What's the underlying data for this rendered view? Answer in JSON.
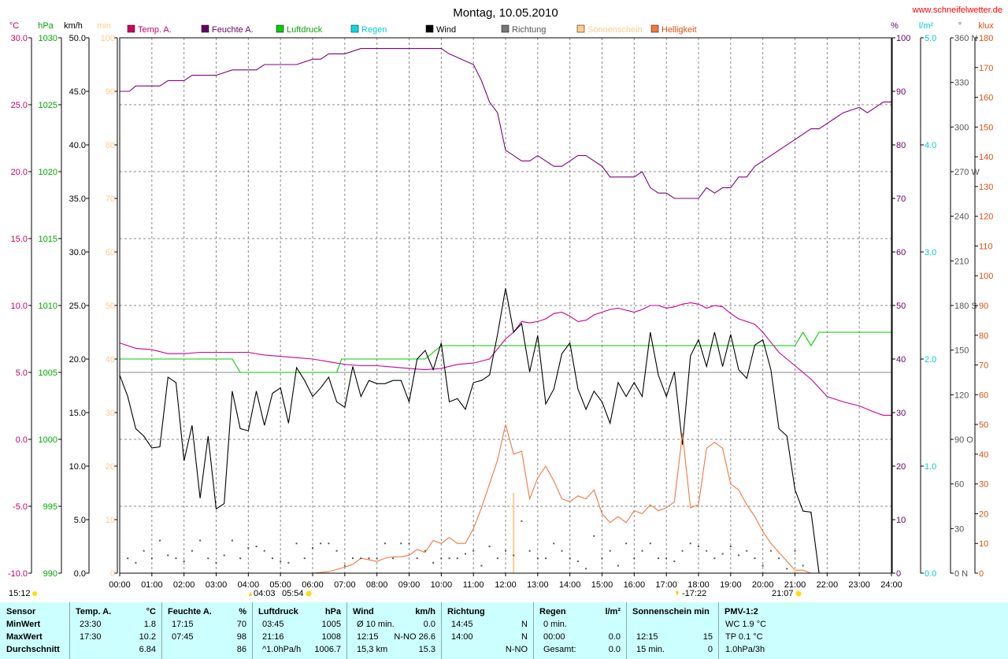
{
  "title": "Montag, 10.05.2010",
  "website": "www.schneifelwetter.de",
  "left_axes": {
    "temp": {
      "unit": "°C",
      "ticks": [
        "30.0",
        "25.0",
        "20.0",
        "15.0",
        "10.0",
        "5.0",
        "0.0",
        "-5.0",
        "-10.0"
      ],
      "color": "#cc0066"
    },
    "pressure": {
      "unit": "hPa",
      "ticks": [
        "1030",
        "1025",
        "1020",
        "1015",
        "1010",
        "1005",
        "1000",
        "995",
        "990"
      ],
      "color": "#00aa00"
    },
    "wind": {
      "unit": "km/h",
      "ticks": [
        "50.0",
        "45.0",
        "40.0",
        "35.0",
        "30.0",
        "25.0",
        "20.0",
        "15.0",
        "10.0",
        "5.0",
        "0.0"
      ],
      "color": "#000000"
    },
    "sun": {
      "unit": "min",
      "ticks": [
        "100",
        "90",
        "80",
        "70",
        "60",
        "50",
        "40",
        "30",
        "20",
        "10",
        "0"
      ],
      "color": "#ffcc88"
    }
  },
  "right_axes": {
    "humidity": {
      "unit": "%",
      "ticks": [
        "100",
        "90",
        "80",
        "70",
        "60",
        "50",
        "40",
        "30",
        "20",
        "10",
        "0"
      ],
      "color": "#660066"
    },
    "rain": {
      "unit": "l/m²",
      "ticks": [
        "5.0",
        "4.0",
        "3.0",
        "2.0",
        "1.0",
        "0.0"
      ],
      "color": "#00cccc"
    },
    "direction": {
      "unit": "°",
      "ticks": [
        "360 N",
        "330",
        "300",
        "270 W",
        "240",
        "210",
        "180 S",
        "150",
        "120",
        "90 O",
        "60",
        "30",
        "0 N"
      ],
      "color": "#555555"
    },
    "light": {
      "unit": "klux",
      "ticks": [
        "180",
        "170",
        "160",
        "150",
        "140",
        "130",
        "120",
        "110",
        "100",
        "90",
        "80",
        "70",
        "60",
        "50",
        "40",
        "30",
        "20",
        "10",
        "0"
      ],
      "color": "#e05010"
    }
  },
  "legend": [
    {
      "label": "Temp. A.",
      "color": "#cc0066"
    },
    {
      "label": "Feuchte A.",
      "color": "#660066"
    },
    {
      "label": "Luftdruck",
      "color": "#00cc00"
    },
    {
      "label": "Regen",
      "color": "#00dddd"
    },
    {
      "label": "Wind",
      "color": "#000000"
    },
    {
      "label": "Richtung",
      "color": "#777777"
    },
    {
      "label": "Sonnenschein",
      "color": "#ffcc88"
    },
    {
      "label": "Helligkeit",
      "color": "#f07840"
    }
  ],
  "x_ticks": [
    "00:00",
    "01:00",
    "02:00",
    "03:00",
    "04:00",
    "05:00",
    "06:00",
    "07:00",
    "08:00",
    "09:00",
    "10:00",
    "11:00",
    "12:00",
    "13:00",
    "14:00",
    "15:00",
    "16:00",
    "17:00",
    "18:00",
    "19:00",
    "20:00",
    "21:00",
    "22:00",
    "23:00",
    "24:00"
  ],
  "markers": {
    "left_time": "15:12",
    "moon_rise": "04:03",
    "sun_rise": "05:54",
    "moon_set": "-17:22",
    "sun_set": "21:07"
  },
  "chart_data": {
    "type": "line",
    "title": "Montag, 10.05.2010",
    "x_range": [
      "00:00",
      "24:00"
    ],
    "grid": true,
    "series": [
      {
        "name": "Feuchte A.",
        "unit": "%",
        "axis": "humidity",
        "x": [
          0.0,
          0.3,
          0.5,
          1.25,
          1.5,
          2.0,
          2.25,
          3.0,
          3.5,
          4.25,
          4.5,
          5.5,
          6.0,
          6.25,
          6.5,
          7.0,
          7.5,
          10.0,
          10.25,
          11.0,
          11.25,
          11.5,
          11.75,
          12.0,
          12.25,
          12.5,
          12.75,
          13.0,
          13.25,
          13.5,
          13.75,
          14.0,
          14.25,
          14.5,
          14.75,
          15.0,
          15.25,
          15.5,
          16.0,
          16.25,
          16.5,
          16.75,
          17.0,
          17.25,
          17.5,
          17.75,
          18.0,
          18.25,
          18.5,
          18.75,
          19.0,
          19.25,
          19.5,
          19.75,
          20.0,
          20.5,
          21.0,
          21.5,
          21.75,
          22.0,
          22.25,
          22.5,
          23.0,
          23.25,
          23.5,
          23.75,
          24.0
        ],
        "values": [
          90,
          90,
          91,
          91,
          92,
          92,
          93,
          93,
          94,
          94,
          95,
          95,
          96,
          96,
          97,
          97,
          98,
          98,
          97,
          95,
          92,
          88,
          86,
          79,
          78,
          77,
          77,
          78,
          77,
          76,
          76,
          77,
          78,
          78,
          77,
          76,
          74,
          74,
          74,
          75,
          72,
          71,
          71,
          70,
          70,
          70,
          70,
          72,
          71,
          72,
          72,
          74,
          74,
          76,
          77,
          79,
          81,
          83,
          83,
          84,
          85,
          86,
          87,
          86,
          87,
          88,
          88
        ]
      },
      {
        "name": "Temp. A.",
        "unit": "°C",
        "axis": "temp",
        "x": [
          0.0,
          0.5,
          1.0,
          1.5,
          2.0,
          2.5,
          3.0,
          3.5,
          4.0,
          4.5,
          5.0,
          5.5,
          6.0,
          6.5,
          7.0,
          7.5,
          8.0,
          8.5,
          9.0,
          9.5,
          10.0,
          10.5,
          11.0,
          11.5,
          12.0,
          12.25,
          12.5,
          12.75,
          13.0,
          13.25,
          13.5,
          13.75,
          14.0,
          14.25,
          14.5,
          14.75,
          15.0,
          15.25,
          15.5,
          16.0,
          16.25,
          16.5,
          16.75,
          17.0,
          17.25,
          17.5,
          17.75,
          18.0,
          18.25,
          18.5,
          18.75,
          19.0,
          19.25,
          19.5,
          19.75,
          20.0,
          20.5,
          21.0,
          21.5,
          22.0,
          22.5,
          23.0,
          23.5,
          23.75,
          24.0
        ],
        "values": [
          7.2,
          6.8,
          6.7,
          6.4,
          6.4,
          6.5,
          6.5,
          6.5,
          6.5,
          6.3,
          6.2,
          6.1,
          6.0,
          5.8,
          5.6,
          5.5,
          5.5,
          5.4,
          5.3,
          5.2,
          5.3,
          5.6,
          5.7,
          6.0,
          7.5,
          8.0,
          8.8,
          8.7,
          8.8,
          9.0,
          9.4,
          9.5,
          9.2,
          8.8,
          8.9,
          9.3,
          9.5,
          9.7,
          9.8,
          9.5,
          9.7,
          10.0,
          10.0,
          9.8,
          9.9,
          10.1,
          10.2,
          10.1,
          9.8,
          10.0,
          9.9,
          9.4,
          9.0,
          8.8,
          8.6,
          8.0,
          6.5,
          5.5,
          4.5,
          3.2,
          2.8,
          2.5,
          2.0,
          1.8,
          1.8
        ]
      },
      {
        "name": "Luftdruck",
        "unit": "hPa",
        "axis": "pressure",
        "x": [
          0.0,
          3.5,
          3.75,
          6.75,
          6.9,
          9.5,
          9.75,
          10.0,
          21.0,
          21.25,
          21.5,
          21.75,
          22.0,
          24.0
        ],
        "values": [
          1006,
          1006,
          1005,
          1005,
          1006,
          1006,
          1006.5,
          1007,
          1007,
          1008,
          1007,
          1008,
          1008,
          1008
        ]
      },
      {
        "name": "Wind",
        "unit": "km/h",
        "axis": "wind",
        "x": [
          0.0,
          0.25,
          0.5,
          0.75,
          1.0,
          1.25,
          1.5,
          1.75,
          2.0,
          2.25,
          2.5,
          2.75,
          3.0,
          3.25,
          3.5,
          3.75,
          4.0,
          4.25,
          4.5,
          4.75,
          5.0,
          5.25,
          5.5,
          5.75,
          6.0,
          6.25,
          6.5,
          6.75,
          7.0,
          7.25,
          7.5,
          7.75,
          8.0,
          8.25,
          8.5,
          8.75,
          9.0,
          9.25,
          9.5,
          9.75,
          10.0,
          10.25,
          10.5,
          10.75,
          11.0,
          11.25,
          11.5,
          11.75,
          12.0,
          12.25,
          12.5,
          12.75,
          13.0,
          13.25,
          13.5,
          13.75,
          14.0,
          14.25,
          14.5,
          14.75,
          15.0,
          15.25,
          15.5,
          15.75,
          16.0,
          16.25,
          16.5,
          16.75,
          17.0,
          17.25,
          17.5,
          17.75,
          18.0,
          18.25,
          18.5,
          18.75,
          19.0,
          19.25,
          19.5,
          19.75,
          20.0,
          20.25,
          20.5,
          20.75,
          21.0,
          21.25,
          21.5,
          21.75,
          22.0
        ],
        "values": [
          18.5,
          16.5,
          13.5,
          12.8,
          11.7,
          11.8,
          18.3,
          17.8,
          10.5,
          13.8,
          7.0,
          12.8,
          6.0,
          6.5,
          17.0,
          13.5,
          13.3,
          17.0,
          13.8,
          16.8,
          17.3,
          14.0,
          19.2,
          18.0,
          16.5,
          17.3,
          18.3,
          16.0,
          15.5,
          19.3,
          16.5,
          18.0,
          17.7,
          17.7,
          18.0,
          18.0,
          16.0,
          20.0,
          20.8,
          19.0,
          21.5,
          16.0,
          16.3,
          15.3,
          17.8,
          18.0,
          18.5,
          22.3,
          26.6,
          22.5,
          23.3,
          18.8,
          22.2,
          15.8,
          17.2,
          20.5,
          21.5,
          17.2,
          15.3,
          17.0,
          16.0,
          14.0,
          17.8,
          16.5,
          17.8,
          16.5,
          22.5,
          18.5,
          16.5,
          18.8,
          12.0,
          20.3,
          21.8,
          19.3,
          22.5,
          19.3,
          22.3,
          19.0,
          18.2,
          21.3,
          21.8,
          19.0,
          13.5,
          12.8,
          7.8,
          5.8,
          5.7,
          0.0,
          0.0
        ]
      },
      {
        "name": "Helligkeit",
        "unit": "klux",
        "axis": "light",
        "x": [
          6.0,
          6.5,
          7.0,
          7.25,
          7.5,
          8.0,
          8.25,
          8.5,
          8.75,
          9.0,
          9.25,
          9.5,
          9.75,
          10.0,
          10.25,
          10.5,
          10.75,
          11.0,
          11.25,
          11.5,
          11.75,
          12.0,
          12.25,
          12.5,
          12.75,
          13.0,
          13.25,
          13.5,
          13.75,
          14.0,
          14.25,
          14.5,
          14.75,
          15.0,
          15.25,
          15.5,
          15.75,
          16.0,
          16.25,
          16.5,
          16.75,
          17.0,
          17.25,
          17.5,
          17.75,
          18.0,
          18.25,
          18.5,
          18.75,
          19.0,
          19.25,
          19.5,
          19.75,
          20.0,
          20.25,
          20.5,
          20.75,
          21.0,
          21.25,
          21.5
        ],
        "values": [
          0,
          0.5,
          2,
          3,
          5,
          4,
          5,
          5.5,
          5.5,
          6,
          8,
          7,
          11,
          10,
          12,
          10,
          10,
          15,
          22,
          30,
          38,
          50,
          40,
          41,
          25,
          32,
          36,
          31,
          25,
          24,
          26,
          25,
          28,
          20,
          17,
          19,
          17,
          21,
          20,
          23,
          21,
          22,
          24,
          47,
          22,
          23,
          42,
          44,
          42,
          30,
          28,
          23,
          19,
          14,
          10,
          7,
          4,
          1,
          1,
          0
        ]
      },
      {
        "name": "Regen",
        "unit": "l/m²",
        "axis": "rain",
        "x": [
          0.0,
          24.0
        ],
        "values": [
          0.0,
          0.0
        ]
      },
      {
        "name": "Sonnenschein",
        "unit": "min",
        "axis": "sun",
        "x": [
          12.25,
          21.0
        ],
        "values": [
          15,
          0
        ]
      },
      {
        "name": "Richtung",
        "unit": "°",
        "axis": "direction",
        "x": [
          0.25,
          0.5,
          0.75,
          1.0,
          1.25,
          1.5,
          1.75,
          2.0,
          2.25,
          2.5,
          2.75,
          3.0,
          3.25,
          3.5,
          3.75,
          4.0,
          4.25,
          4.5,
          4.75,
          5.0,
          5.25,
          5.5,
          5.75,
          6.0,
          6.25,
          6.5,
          6.75,
          7.0,
          7.25,
          7.5,
          7.75,
          8.0,
          8.25,
          8.5,
          8.75,
          9.0,
          9.25,
          9.5,
          9.75,
          10.0,
          10.25,
          10.5,
          10.75,
          11.0,
          11.25,
          11.5,
          11.75,
          12.0,
          12.25,
          12.5,
          12.75,
          13.0,
          13.25,
          13.5,
          13.75,
          14.0,
          14.25,
          14.5,
          14.75,
          15.0,
          15.25,
          15.5,
          15.75,
          16.0,
          16.25,
          16.5,
          16.75,
          17.0,
          17.25,
          17.5,
          17.75,
          18.0,
          18.25,
          18.5,
          18.75,
          19.0,
          19.25,
          19.5,
          19.75,
          20.0,
          20.25,
          20.5,
          20.75,
          21.0,
          21.25,
          21.5
        ],
        "values": [
          10,
          7,
          15,
          10,
          22,
          12,
          10,
          8,
          15,
          22,
          10,
          7,
          12,
          22,
          10,
          17,
          18,
          15,
          10,
          8,
          7,
          20,
          10,
          17,
          20,
          20,
          15,
          5,
          10,
          10,
          10,
          10,
          20,
          10,
          20,
          20,
          10,
          15,
          7,
          10,
          10,
          10,
          13,
          15,
          5,
          18,
          10,
          15,
          12,
          35,
          15,
          10,
          10,
          20,
          15,
          10,
          8,
          3,
          25,
          10,
          15,
          5,
          20,
          10,
          15,
          20,
          10,
          10,
          8,
          15,
          20,
          18,
          15,
          10,
          13,
          18,
          12,
          15,
          10,
          5,
          15,
          10,
          3,
          15,
          5,
          40
        ]
      }
    ]
  },
  "stats": {
    "sections": [
      {
        "title": "Sensor",
        "unit": "",
        "rows": [
          [
            "MinWert"
          ],
          [
            "MaxWert"
          ],
          [
            "Durchschnitt"
          ]
        ]
      },
      {
        "title": "Temp. A.",
        "unit": "°C",
        "rows": [
          [
            "23:30",
            "1.8"
          ],
          [
            "17:30",
            "10.2"
          ],
          [
            "",
            "6.84"
          ]
        ]
      },
      {
        "title": "Feuchte A.",
        "unit": "%",
        "rows": [
          [
            "17:15",
            "70"
          ],
          [
            "07:45",
            "98"
          ],
          [
            "",
            "86"
          ]
        ]
      },
      {
        "title": "Luftdruck",
        "unit": "hPa",
        "rows": [
          [
            "03:45",
            "1005"
          ],
          [
            "21:16",
            "1008"
          ],
          [
            "^1.0hPa/h",
            "1006.7"
          ]
        ]
      },
      {
        "title": "Wind",
        "unit": "km/h",
        "rows": [
          [
            "Ø 10 min.",
            "0.0"
          ],
          [
            "12:15",
            "N-NO 26.6"
          ],
          [
            "15,3 km",
            "15.3"
          ]
        ]
      },
      {
        "title": "Richtung",
        "unit": "",
        "rows": [
          [
            "14:45",
            "N"
          ],
          [
            "14:00",
            "N"
          ],
          [
            "",
            "N-NO"
          ]
        ]
      },
      {
        "title": "Regen",
        "unit": "l/m²",
        "rows": [
          [
            "0 min.",
            ""
          ],
          [
            "00:00",
            "0.0"
          ],
          [
            "Gesamt:",
            "0.0"
          ]
        ]
      },
      {
        "title": "Sonnenschein min",
        "unit": "",
        "rows": [
          [
            "",
            ""
          ],
          [
            "12:15",
            "15"
          ],
          [
            "15 min.",
            "0"
          ]
        ]
      },
      {
        "title": "PMV-1:2",
        "unit": "",
        "rows": [
          [
            "WC 1.9 °C"
          ],
          [
            "TP 0.1 °C"
          ],
          [
            "1.0hPa/3h"
          ]
        ]
      }
    ]
  }
}
